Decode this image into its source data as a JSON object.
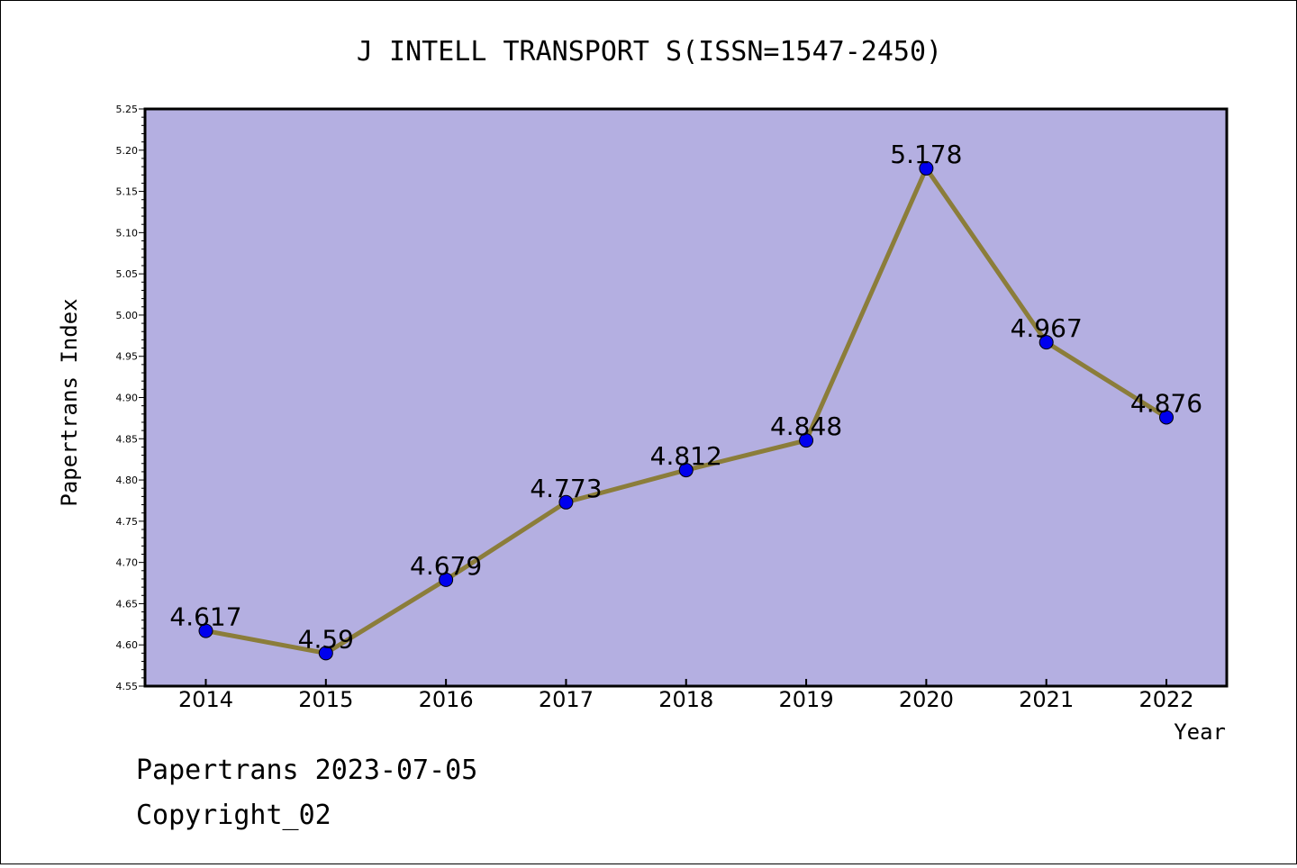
{
  "chart_data": {
    "type": "line",
    "title": "J INTELL TRANSPORT S(ISSN=1547-2450)",
    "xlabel": "Year",
    "ylabel": "Papertrans Index",
    "categories": [
      "2014",
      "2015",
      "2016",
      "2017",
      "2018",
      "2019",
      "2020",
      "2021",
      "2022"
    ],
    "series": [
      {
        "name": "Papertrans Index",
        "values": [
          4.617,
          4.59,
          4.679,
          4.773,
          4.812,
          4.848,
          5.178,
          4.967,
          4.876
        ],
        "labels": [
          "4.617",
          "4.59",
          "4.679",
          "4.773",
          "4.812",
          "4.848",
          "5.178",
          "4.967",
          "4.876"
        ]
      }
    ],
    "ylim": [
      4.55,
      5.25
    ],
    "yticks": [
      "4.55",
      "4.60",
      "4.65",
      "4.70",
      "4.75",
      "4.80",
      "4.85",
      "4.90",
      "4.95",
      "5.00",
      "5.05",
      "5.10",
      "5.15",
      "5.20",
      "5.25"
    ],
    "grid": false,
    "colors": {
      "plot_bg": "#b4afe1",
      "line": "#8b7d3a",
      "marker": "#0000ee"
    }
  },
  "footer": {
    "date_line": "Papertrans 2023-07-05",
    "copyright": "Copyright_02"
  }
}
